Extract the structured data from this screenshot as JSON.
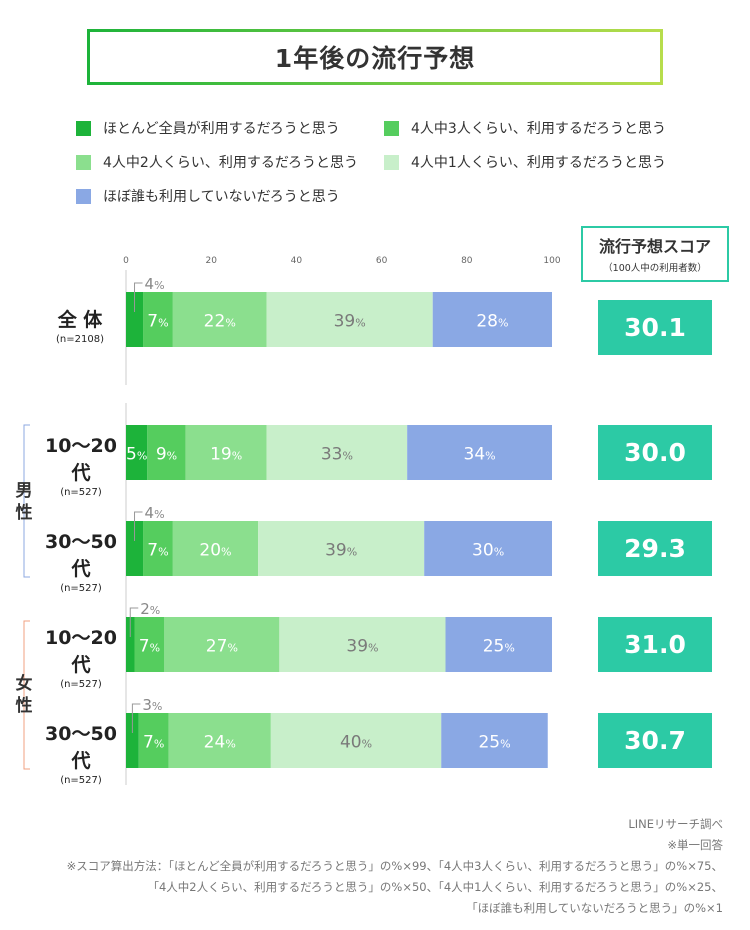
{
  "title": "1年後の流行予想",
  "legend": [
    {
      "label": "ほとんど全員が利用するだろうと思う",
      "color": "#1db33a"
    },
    {
      "label": "4人中3人くらい、利用するだろうと思う",
      "color": "#55cd5e"
    },
    {
      "label": "4人中2人くらい、利用するだろうと思う",
      "color": "#8bdf8e"
    },
    {
      "label": "4人中1人くらい、利用するだろうと思う",
      "color": "#c8efca"
    },
    {
      "label": "ほぼ誰も利用していないだろうと思う",
      "color": "#8aa8e4"
    }
  ],
  "score_header": {
    "title": "流行予想スコア",
    "subtitle": "（100人中の利用者数）"
  },
  "groups": {
    "male": "男性",
    "female": "女性"
  },
  "rows": [
    {
      "name": "全 体",
      "n": "(n=2108)",
      "score": "30.1"
    },
    {
      "name": "10〜20代",
      "n": "(n=527)",
      "score": "30.0"
    },
    {
      "name": "30〜50代",
      "n": "(n=527)",
      "score": "29.3"
    },
    {
      "name": "10〜20代",
      "n": "(n=527)",
      "score": "31.0"
    },
    {
      "name": "30〜50代",
      "n": "(n=527)",
      "score": "30.7"
    }
  ],
  "chart_data": {
    "type": "bar",
    "orientation": "horizontal",
    "stacked": true,
    "xlim": [
      0,
      100
    ],
    "x_ticks": [
      "0",
      "20",
      "40",
      "60",
      "80",
      "100"
    ],
    "categories": [
      "全体",
      "男性 10〜20代",
      "男性 30〜50代",
      "女性 10〜20代",
      "女性 30〜50代"
    ],
    "value_suffix": "%",
    "series": [
      {
        "name": "ほとんど全員が利用するだろうと思う",
        "color": "#1db33a",
        "values": [
          4,
          5,
          4,
          2,
          3
        ]
      },
      {
        "name": "4人中3人くらい、利用するだろうと思う",
        "color": "#55cd5e",
        "values": [
          7,
          9,
          7,
          7,
          7
        ]
      },
      {
        "name": "4人中2人くらい、利用するだろうと思う",
        "color": "#8bdf8e",
        "values": [
          22,
          19,
          20,
          27,
          24
        ]
      },
      {
        "name": "4人中1人くらい、利用するだろうと思う",
        "color": "#c8efca",
        "values": [
          39,
          33,
          39,
          39,
          40
        ]
      },
      {
        "name": "ほぼ誰も利用していないだろうと思う",
        "color": "#8aa8e4",
        "values": [
          28,
          34,
          30,
          25,
          25
        ]
      }
    ]
  },
  "notes": [
    "LINEリサーチ調べ",
    "※単一回答",
    "※スコア算出方法：「ほとんど全員が利用するだろうと思う」の%×99、「4人中3人くらい、利用するだろうと思う」の%×75、",
    "「4人中2人くらい、利用するだろうと思う」の%×50、「4人中1人くらい、利用するだろうと思う」の%×25、",
    "「ほぼ誰も利用していないだろうと思う」の%×1"
  ]
}
